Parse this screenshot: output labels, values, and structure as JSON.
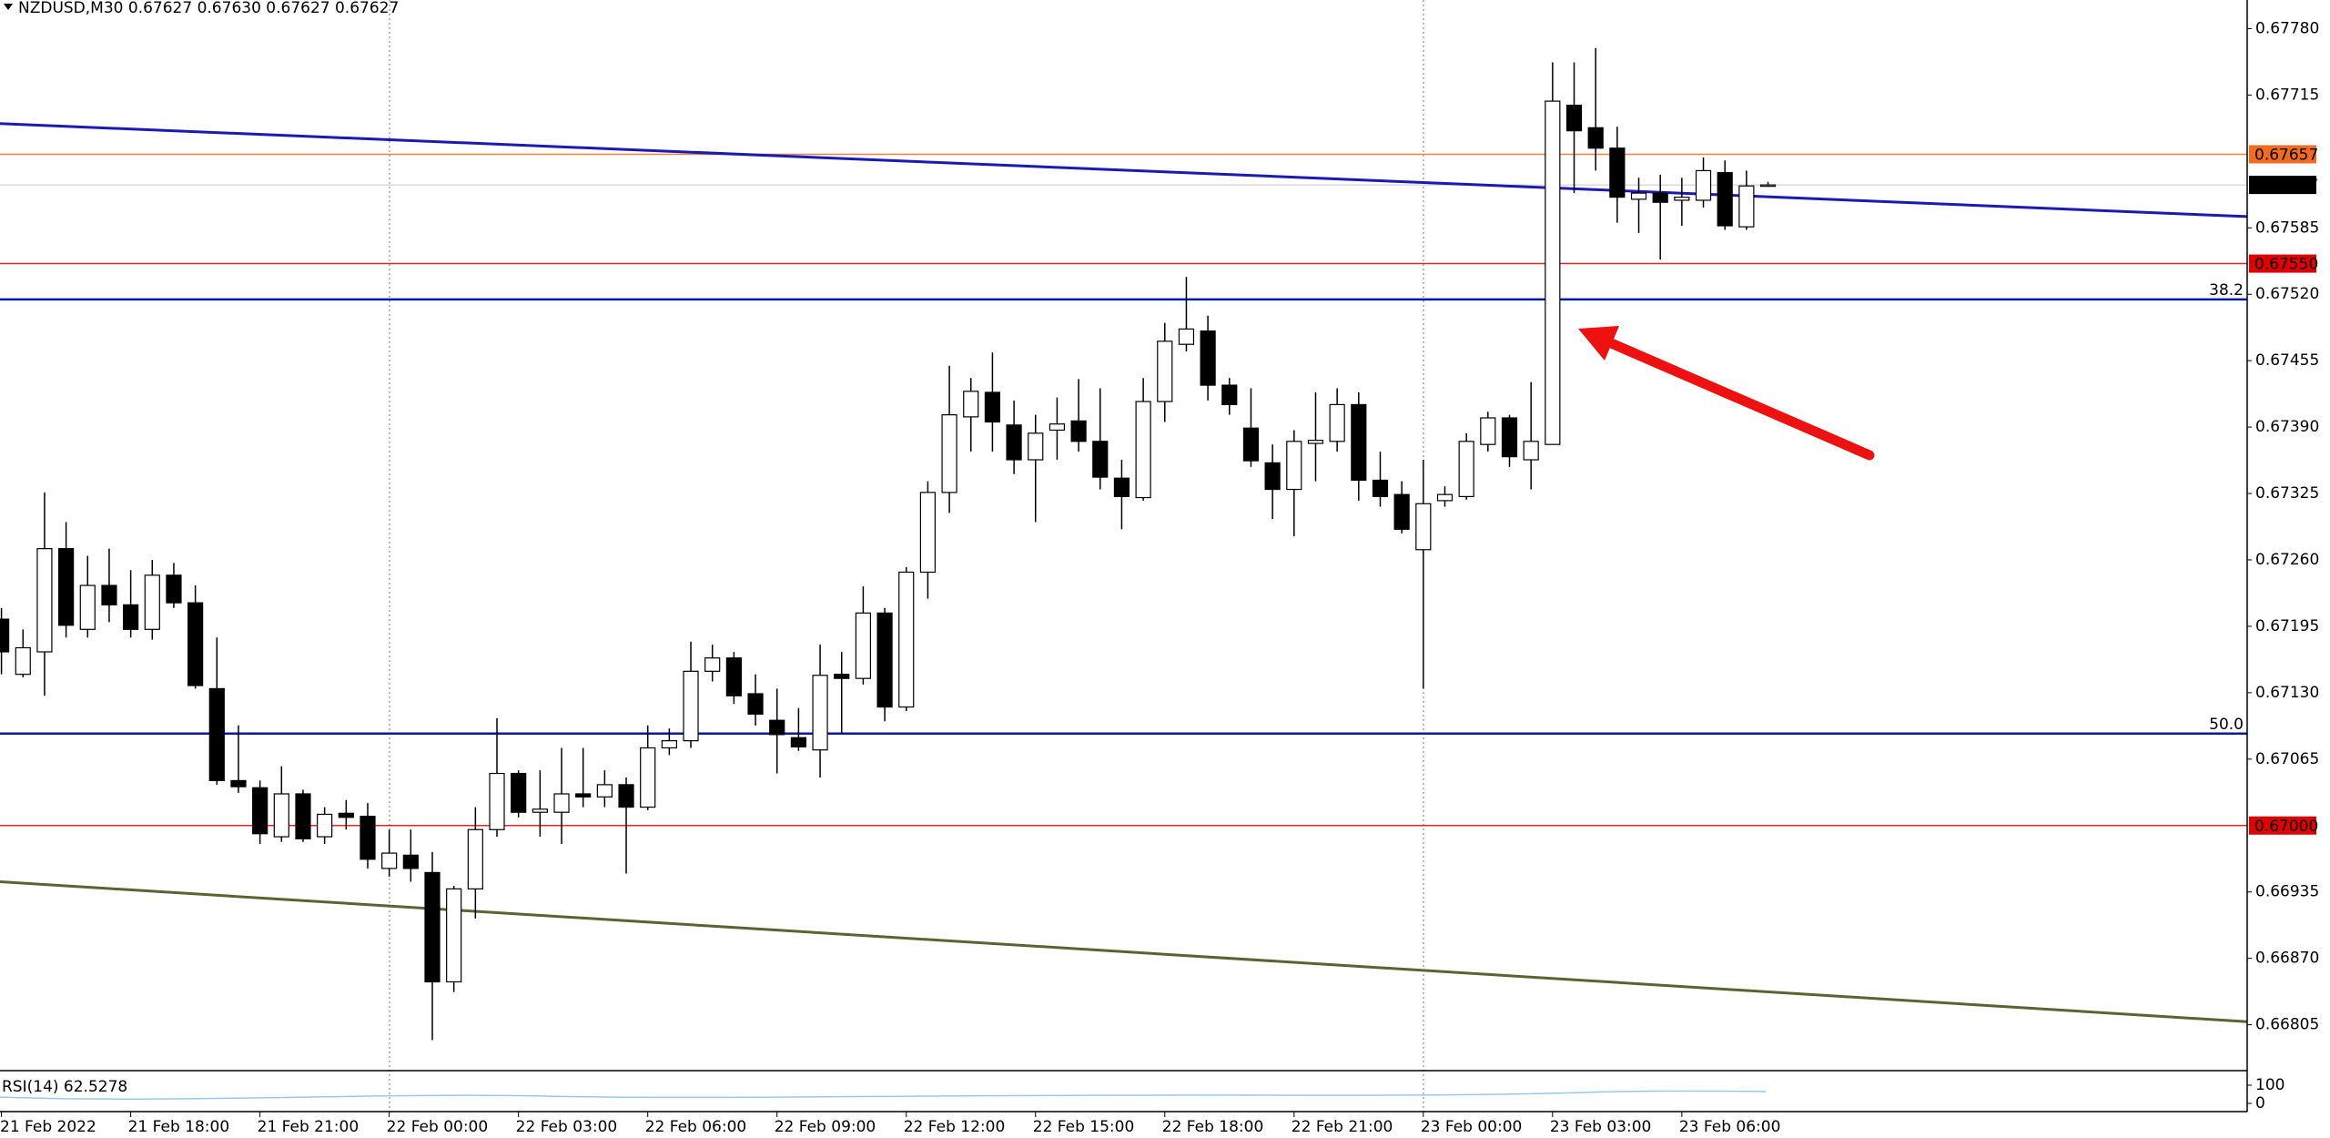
{
  "chart_data": {
    "type": "candlestick",
    "title": "NZDUSD,M30  0.67627 0.67630 0.67627 0.67627",
    "categories": [
      "21 Feb 2022",
      null,
      null,
      null,
      null,
      null,
      "21 Feb 18:00",
      null,
      null,
      null,
      null,
      null,
      "21 Feb 21:00",
      null,
      null,
      null,
      null,
      null,
      "22 Feb 00:00",
      null,
      null,
      null,
      null,
      null,
      "22 Feb 03:00",
      null,
      null,
      null,
      null,
      null,
      "22 Feb 06:00",
      null,
      null,
      null,
      null,
      null,
      "22 Feb 09:00",
      null,
      null,
      null,
      null,
      null,
      "22 Feb 12:00",
      null,
      null,
      null,
      null,
      null,
      "22 Feb 15:00",
      null,
      null,
      null,
      null,
      null,
      "22 Feb 18:00",
      null,
      null,
      null,
      null,
      null,
      "22 Feb 21:00",
      null,
      null,
      null,
      null,
      null,
      "23 Feb 00:00",
      null,
      null,
      null,
      null,
      null,
      "23 Feb 03:00",
      null,
      null,
      null,
      null,
      null,
      "23 Feb 06:00",
      null,
      null,
      null,
      null
    ],
    "open": [
      0.67202,
      0.67148,
      0.6717,
      0.67271,
      0.67192,
      0.67235,
      0.67216,
      0.67192,
      0.67245,
      0.67218,
      0.67134,
      0.67044,
      0.67037,
      0.66989,
      0.67031,
      0.66989,
      0.67012,
      0.67009,
      0.66958,
      0.66971,
      0.66954,
      0.66847,
      0.66938,
      0.66996,
      0.67051,
      0.67013,
      0.67013,
      0.67031,
      0.67028,
      0.6704,
      0.67018,
      0.67076,
      0.67083,
      0.67151,
      0.67164,
      0.67129,
      0.67103,
      0.67086,
      0.67074,
      0.67148,
      0.67144,
      0.67208,
      0.67116,
      0.67248,
      0.67326,
      0.674,
      0.67424,
      0.67392,
      0.67358,
      0.67387,
      0.67396,
      0.67376,
      0.6734,
      0.67321,
      0.67415,
      0.67471,
      0.67484,
      0.67431,
      0.67389,
      0.67355,
      0.67329,
      0.67374,
      0.67376,
      0.67412,
      0.67338,
      0.67324,
      0.6727,
      0.67318,
      0.67322,
      0.67373,
      0.67399,
      0.67358,
      0.67373,
      0.67705,
      0.67683,
      0.67663,
      0.67613,
      0.67619,
      0.67612,
      0.67612,
      0.67639,
      0.67586,
      0.67627
    ],
    "high": [
      0.67213,
      0.67192,
      0.67326,
      0.67297,
      0.67264,
      0.67271,
      0.6725,
      0.6726,
      0.67257,
      0.67235,
      0.67184,
      0.67098,
      0.67044,
      0.67058,
      0.67035,
      0.67018,
      0.67025,
      0.67022,
      0.66996,
      0.66996,
      0.66974,
      0.66941,
      0.67018,
      0.67105,
      0.67054,
      0.67054,
      0.67076,
      0.67076,
      0.67054,
      0.67047,
      0.67098,
      0.67095,
      0.6718,
      0.67177,
      0.6717,
      0.67148,
      0.67134,
      0.67115,
      0.67177,
      0.6717,
      0.67234,
      0.67213,
      0.67253,
      0.67337,
      0.6745,
      0.67438,
      0.67463,
      0.67416,
      0.67402,
      0.67419,
      0.67437,
      0.67428,
      0.67358,
      0.67438,
      0.67492,
      0.67537,
      0.67499,
      0.67438,
      0.67428,
      0.67373,
      0.67387,
      0.67424,
      0.67428,
      0.67424,
      0.67366,
      0.67337,
      0.67358,
      0.67332,
      0.67384,
      0.67405,
      0.67402,
      0.67434,
      0.67747,
      0.67747,
      0.67761,
      0.67684,
      0.67634,
      0.67637,
      0.67634,
      0.67654,
      0.67651,
      0.67641,
      0.6763
    ],
    "low": [
      0.67148,
      0.67145,
      0.67127,
      0.67184,
      0.67184,
      0.67199,
      0.67184,
      0.67182,
      0.67213,
      0.67134,
      0.6704,
      0.67032,
      0.66982,
      0.66984,
      0.66984,
      0.66982,
      0.66996,
      0.66958,
      0.6695,
      0.66945,
      0.6679,
      0.66837,
      0.66909,
      0.66989,
      0.67008,
      0.66989,
      0.66982,
      0.67018,
      0.67018,
      0.66953,
      0.67015,
      0.67069,
      0.67076,
      0.67141,
      0.67119,
      0.67098,
      0.67051,
      0.67073,
      0.67047,
      0.6709,
      0.67138,
      0.67102,
      0.67112,
      0.67222,
      0.67306,
      0.67366,
      0.67366,
      0.67344,
      0.67297,
      0.67358,
      0.67366,
      0.67329,
      0.6729,
      0.67318,
      0.67395,
      0.67464,
      0.67416,
      0.67402,
      0.67351,
      0.673,
      0.67283,
      0.67337,
      0.67366,
      0.67318,
      0.67312,
      0.67286,
      0.67134,
      0.67312,
      0.67319,
      0.67366,
      0.67351,
      0.67329,
      0.67373,
      0.67619,
      0.67641,
      0.6759,
      0.6758,
      0.67554,
      0.67587,
      0.67605,
      0.67583,
      0.67583,
      0.67627
    ],
    "close": [
      0.6717,
      0.67174,
      0.67271,
      0.67196,
      0.67235,
      0.67216,
      0.67192,
      0.67245,
      0.67218,
      0.67137,
      0.67044,
      0.67038,
      0.66992,
      0.67031,
      0.66987,
      0.67011,
      0.67008,
      0.66967,
      0.66973,
      0.66958,
      0.66847,
      0.66938,
      0.66996,
      0.67051,
      0.67013,
      0.67016,
      0.67031,
      0.67028,
      0.6704,
      0.67018,
      0.67076,
      0.67083,
      0.67151,
      0.67164,
      0.67127,
      0.67109,
      0.67089,
      0.67077,
      0.67147,
      0.67144,
      0.67208,
      0.67116,
      0.67248,
      0.67326,
      0.67402,
      0.67425,
      0.67395,
      0.67358,
      0.67384,
      0.67393,
      0.67376,
      0.67341,
      0.67322,
      0.67415,
      0.67474,
      0.67486,
      0.67431,
      0.67412,
      0.67357,
      0.67329,
      0.67376,
      0.67377,
      0.67412,
      0.67338,
      0.67322,
      0.6729,
      0.67315,
      0.67324,
      0.67376,
      0.67399,
      0.67361,
      0.67376,
      0.67709,
      0.6768,
      0.67663,
      0.67615,
      0.67619,
      0.6761,
      0.67615,
      0.67641,
      0.67587,
      0.67626,
      0.67627
    ],
    "up_color": "#ffffff",
    "down_color": "#000000",
    "ylim": [
      0.66761,
      0.67808
    ],
    "yticks": [
      {
        "value": 0.6778,
        "label": "0.67780"
      },
      0.67715,
      0.67585,
      {
        "value": 0.6752,
        "label": "0.67520"
      },
      0.67455,
      {
        "value": 0.6739,
        "label": "0.67390"
      },
      0.67325,
      {
        "value": 0.6726,
        "label": "0.67260"
      },
      0.67195,
      {
        "value": 0.6713,
        "label": "0.67130"
      },
      0.67065,
      0.66935,
      {
        "value": 0.6687,
        "label": "0.66870"
      },
      0.66805
    ],
    "levels": [
      {
        "value": 0.67657,
        "label": "0.67657",
        "color": "#f26b21"
      },
      {
        "value": 0.67627,
        "label": "0.67627",
        "color": "#000000"
      },
      {
        "value": 0.6755,
        "label": "0.67550",
        "color": "#e00000"
      },
      {
        "value": 0.67,
        "label": "0.67000",
        "color": "#e00000"
      }
    ],
    "fib_levels": [
      {
        "value": 0.67515,
        "label": "38.2",
        "color": "#0a1aa0"
      },
      {
        "value": 0.6709,
        "label": "50.0",
        "color": "#0a1aa0"
      }
    ],
    "trendlines": [
      {
        "start": 0.67687,
        "end": 0.67596,
        "color": "#1a1ab4"
      },
      {
        "start": 0.66945,
        "end": 0.66808,
        "color": "#5a6432"
      }
    ],
    "rsi": {
      "label": "RSI(14) 62.5278",
      "ylim": [
        0,
        100
      ],
      "yticks": [
        100,
        0
      ]
    }
  }
}
